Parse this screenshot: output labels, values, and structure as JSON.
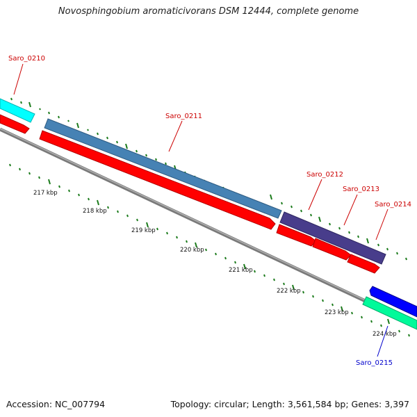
{
  "header": {
    "title": "Novosphingobium aromaticivorans DSM 12444, complete genome"
  },
  "footer": {
    "accession": "Accession: NC_007794",
    "summary": "Topology: circular; Length: 3,561,584 bp; Genes: 3,397"
  },
  "scale": {
    "ticks": [
      "217 kbp",
      "218 kbp",
      "219 kbp",
      "220 kbp",
      "221 kbp",
      "222 kbp",
      "223 kbp",
      "224 kbp"
    ]
  },
  "genes": [
    {
      "label": "Saro_0210",
      "color": "#00ffff",
      "cds_color": "#ff0000",
      "label_color": "#cc0000"
    },
    {
      "label": "Saro_0211",
      "color": "#4682b4",
      "cds_color": "#ff0000",
      "label_color": "#cc0000"
    },
    {
      "label": "Saro_0212",
      "color": "#483d8b",
      "cds_color": "#ff0000",
      "label_color": "#cc0000"
    },
    {
      "label": "Saro_0213",
      "color": "#483d8b",
      "cds_color": "#ff0000",
      "label_color": "#cc0000"
    },
    {
      "label": "Saro_0214",
      "color": "#483d8b",
      "cds_color": "#ff0000",
      "label_color": "#cc0000"
    },
    {
      "label": "Saro_0215",
      "color": "#00fa9a",
      "cds_color": "#0000ff",
      "label_color": "#0000cc"
    }
  ],
  "colors": {
    "backbone": "#888888",
    "tick": "#1a7a1a"
  }
}
